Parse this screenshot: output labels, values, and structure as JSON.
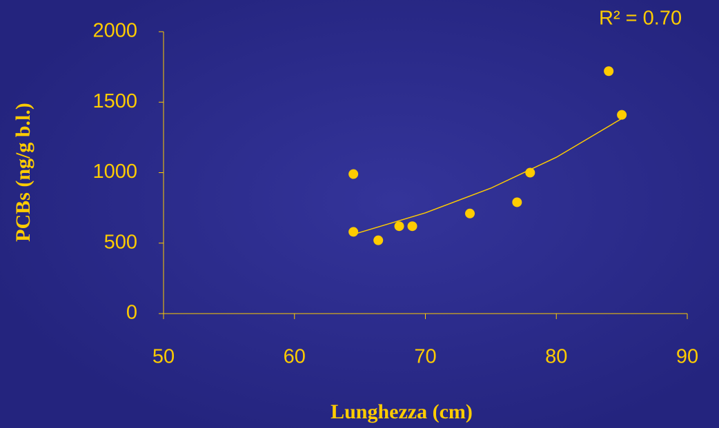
{
  "chart_data": {
    "type": "scatter",
    "x_label": "Lunghezza (cm)",
    "y_label": "PCBs (ng/g b.l.)",
    "annotation": "R² = 0.70",
    "x": [
      64.5,
      64.5,
      66.4,
      68,
      69,
      73.4,
      77,
      78,
      84,
      85
    ],
    "values": [
      580,
      990,
      520,
      620,
      620,
      710,
      790,
      1000,
      1720,
      1410
    ],
    "color": "#ffcc00",
    "trendline": {
      "x": [
        64.5,
        70,
        75,
        80,
        85
      ],
      "values": [
        562,
        715,
        890,
        1109,
        1384
      ]
    },
    "xlim": [
      50,
      90
    ],
    "xticks": [
      50,
      60,
      70,
      80,
      90
    ],
    "ylim": [
      0,
      2000
    ],
    "yticks": [
      0,
      500,
      1000,
      1500,
      2000
    ]
  }
}
